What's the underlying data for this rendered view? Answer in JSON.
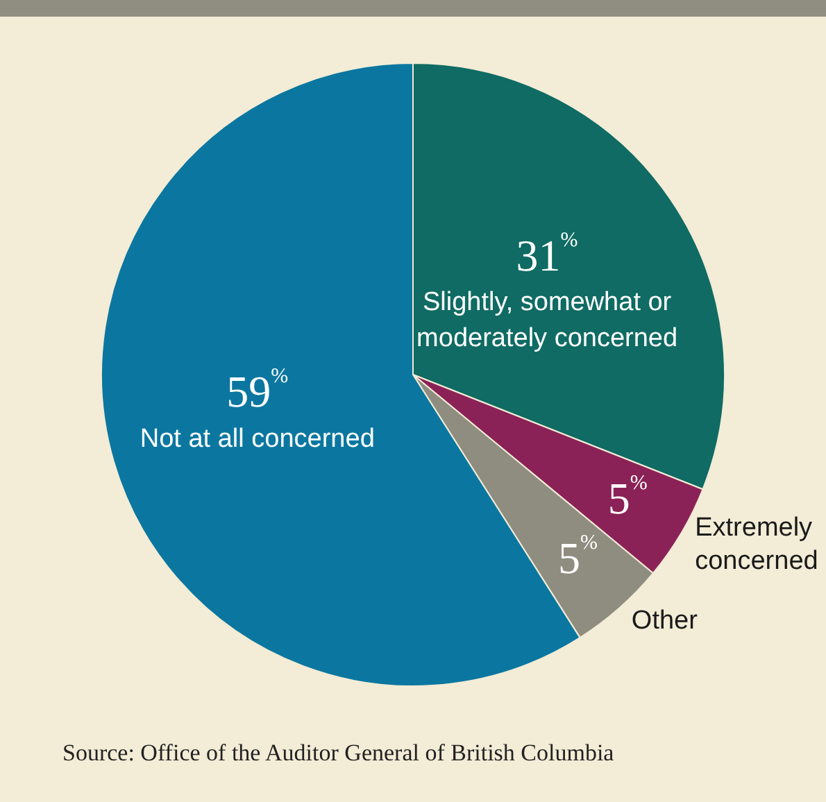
{
  "chart_data": {
    "type": "pie",
    "categories": [
      "Slightly, somewhat or moderately concerned",
      "Extremely concerned",
      "Other",
      "Not at all concerned"
    ],
    "values": [
      31,
      5,
      5,
      59
    ],
    "colors": [
      "#0f6b63",
      "#8b2257",
      "#8f8d80",
      "#0b77a0"
    ],
    "value_labels": [
      "31$^{%}$",
      "5$^{%}$",
      "5$^{%}$",
      "59$^{%}$"
    ],
    "legend": false,
    "annotations": [
      "Source: Office of the Auditor General of British Columbia"
    ]
  }
}
